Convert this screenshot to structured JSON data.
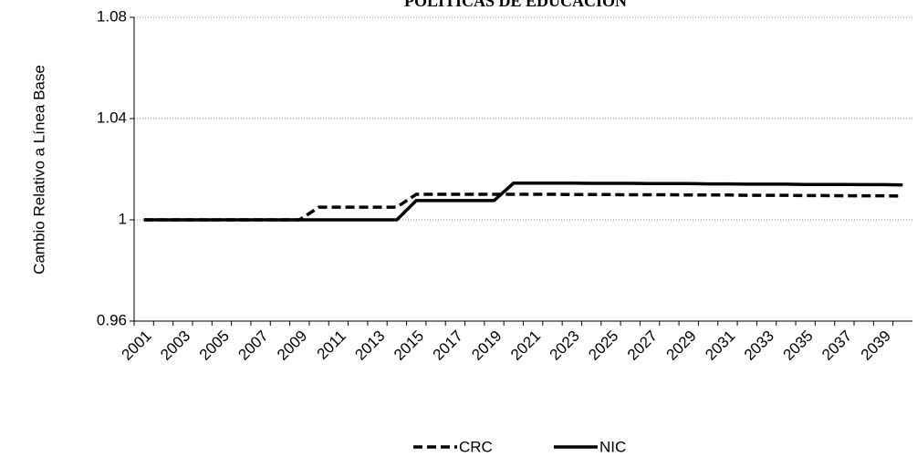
{
  "chart_data": {
    "type": "line",
    "title": "POLITICAS DE EDUCACION",
    "y_label": "Cambio Relativo a Línea Base",
    "categories": [
      "2001",
      null,
      "2003",
      null,
      "2005",
      null,
      "2007",
      null,
      "2009",
      null,
      "2011",
      null,
      "2013",
      null,
      "2015",
      null,
      "2017",
      null,
      "2019",
      null,
      "2021",
      null,
      "2023",
      null,
      "2025",
      null,
      "2027",
      null,
      "2029",
      null,
      "2031",
      null,
      "2033",
      null,
      "2035",
      null,
      "2037",
      null,
      "2039",
      null
    ],
    "series": [
      {
        "name": "CRC",
        "color": "#000000",
        "dash": true,
        "values": [
          1,
          1,
          1,
          1,
          1,
          1,
          1,
          1,
          1,
          1.005,
          1.005,
          1.005,
          1.005,
          1.005,
          1.0101,
          1.0101,
          1.0101,
          1.0101,
          1.0101,
          1.0101,
          1.0101,
          1.0101,
          1.01,
          1.01,
          1.01,
          1.0099,
          1.0099,
          1.0099,
          1.0098,
          1.0098,
          1.0098,
          1.0097,
          1.0097,
          1.0097,
          1.0096,
          1.0096,
          1.0095,
          1.0095,
          1.0095,
          1.0094
        ]
      },
      {
        "name": "NIC",
        "color": "#000000",
        "dash": false,
        "values": [
          1,
          1,
          1,
          1,
          1,
          1,
          1,
          1,
          1,
          1,
          1,
          1,
          1,
          1,
          1.0076,
          1.0076,
          1.0076,
          1.0076,
          1.0076,
          1.0145,
          1.0145,
          1.0145,
          1.0145,
          1.0144,
          1.0144,
          1.0144,
          1.0143,
          1.0143,
          1.0143,
          1.0142,
          1.0142,
          1.0141,
          1.0141,
          1.0141,
          1.014,
          1.014,
          1.014,
          1.0139,
          1.0139,
          1.0138
        ]
      }
    ],
    "ylim": [
      0.96,
      1.08
    ],
    "yticks": [
      0.96,
      1,
      1.04,
      1.08
    ],
    "grid": true,
    "legend": "bottom"
  }
}
